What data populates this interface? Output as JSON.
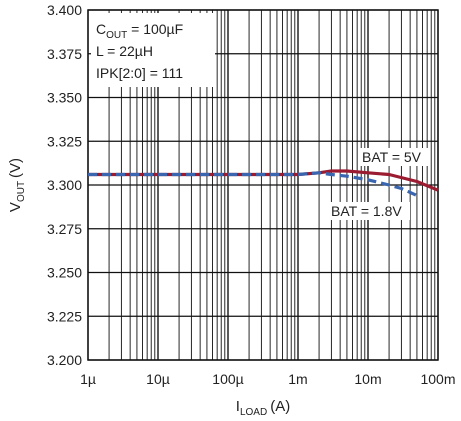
{
  "chart_data": {
    "type": "line",
    "x_scale": "log",
    "xlim": [
      1e-06,
      0.1
    ],
    "ylim": [
      3.2,
      3.4
    ],
    "xticks": [
      1e-06,
      1e-05,
      0.0001,
      0.001,
      0.01,
      0.1
    ],
    "xtick_labels": [
      "1µ",
      "10µ",
      "100µ",
      "1m",
      "10m",
      "100m"
    ],
    "yticks": [
      3.2,
      3.225,
      3.25,
      3.275,
      3.3,
      3.325,
      3.35,
      3.375,
      3.4
    ],
    "ytick_labels": [
      "3.200",
      "3.225",
      "3.250",
      "3.275",
      "3.300",
      "3.325",
      "3.350",
      "3.375",
      "3.400"
    ],
    "xlabel": {
      "main": "I",
      "sub": "LOAD",
      "unit": "(A)"
    },
    "ylabel": {
      "main": "V",
      "sub": "OUT",
      "unit": "(V)"
    },
    "grid": true,
    "annotations": {
      "cout": {
        "main": "C",
        "sub": "OUT",
        "rest": " = 100µF"
      },
      "inductor": "L = 22µH",
      "ipk": "IPK[2:0] = 111"
    },
    "series": [
      {
        "name": "BAT = 5V",
        "color": "#9b1b30",
        "style": "solid",
        "x": [
          1e-06,
          1e-05,
          0.0001,
          0.001,
          0.002,
          0.003,
          0.005,
          0.01,
          0.02,
          0.05,
          0.1
        ],
        "y": [
          3.306,
          3.306,
          3.306,
          3.306,
          3.307,
          3.308,
          3.308,
          3.307,
          3.306,
          3.302,
          3.297
        ]
      },
      {
        "name": "BAT = 1.8V",
        "color": "#3a66b0",
        "style": "dashed",
        "x": [
          1e-06,
          1e-05,
          0.0001,
          0.001,
          0.002,
          0.003,
          0.005,
          0.01,
          0.02,
          0.03,
          0.05
        ],
        "y": [
          3.306,
          3.306,
          3.306,
          3.306,
          3.307,
          3.306,
          3.305,
          3.303,
          3.3,
          3.298,
          3.294
        ]
      }
    ]
  }
}
